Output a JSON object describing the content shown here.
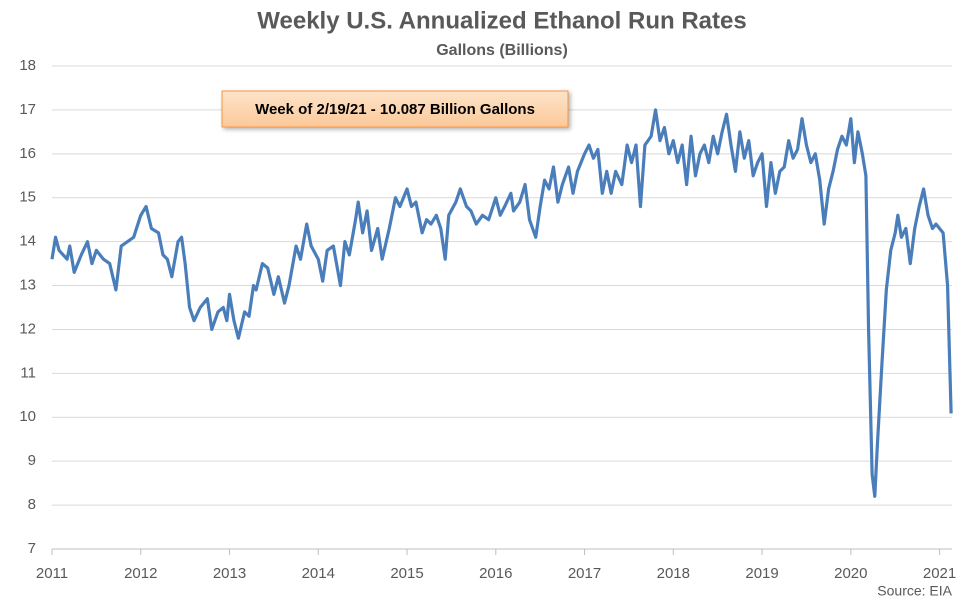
{
  "chart_data": {
    "type": "line",
    "title": "Weekly U.S. Annualized Ethanol Run Rates",
    "subtitle": "Gallons (Billions)",
    "annotation": "Week of 2/19/21 - 10.087 Billion Gallons",
    "source": "Source: EIA",
    "color": "#4a7ebb",
    "grid": true,
    "xlim": [
      2011,
      2021.14
    ],
    "xticks": [
      2011,
      2012,
      2013,
      2014,
      2015,
      2016,
      2017,
      2018,
      2019,
      2020,
      2021
    ],
    "ylim": [
      7,
      18
    ],
    "yticks": [
      7,
      8,
      9,
      10,
      11,
      12,
      13,
      14,
      15,
      16,
      17,
      18
    ],
    "x": [
      2011.0,
      2011.04,
      2011.08,
      2011.17,
      2011.2,
      2011.25,
      2011.33,
      2011.4,
      2011.45,
      2011.5,
      2011.58,
      2011.65,
      2011.72,
      2011.78,
      2011.85,
      2011.92,
      2012.0,
      2012.06,
      2012.12,
      2012.2,
      2012.25,
      2012.3,
      2012.35,
      2012.42,
      2012.46,
      2012.5,
      2012.55,
      2012.6,
      2012.67,
      2012.75,
      2012.8,
      2012.87,
      2012.93,
      2012.97,
      2013.0,
      2013.05,
      2013.1,
      2013.17,
      2013.22,
      2013.27,
      2013.3,
      2013.37,
      2013.43,
      2013.5,
      2013.55,
      2013.62,
      2013.67,
      2013.75,
      2013.8,
      2013.87,
      2013.92,
      2014.0,
      2014.05,
      2014.1,
      2014.17,
      2014.25,
      2014.3,
      2014.35,
      2014.42,
      2014.45,
      2014.5,
      2014.55,
      2014.6,
      2014.67,
      2014.72,
      2014.8,
      2014.87,
      2014.92,
      2015.0,
      2015.05,
      2015.1,
      2015.17,
      2015.22,
      2015.27,
      2015.33,
      2015.38,
      2015.43,
      2015.47,
      2015.55,
      2015.6,
      2015.67,
      2015.72,
      2015.78,
      2015.85,
      2015.92,
      2016.0,
      2016.05,
      2016.1,
      2016.17,
      2016.2,
      2016.27,
      2016.33,
      2016.38,
      2016.45,
      2016.5,
      2016.55,
      2016.6,
      2016.65,
      2016.7,
      2016.75,
      2016.82,
      2016.87,
      2016.92,
      2017.0,
      2017.05,
      2017.1,
      2017.15,
      2017.2,
      2017.25,
      2017.3,
      2017.35,
      2017.42,
      2017.48,
      2017.53,
      2017.58,
      2017.63,
      2017.68,
      2017.75,
      2017.8,
      2017.85,
      2017.9,
      2017.95,
      2018.0,
      2018.05,
      2018.1,
      2018.15,
      2018.2,
      2018.25,
      2018.3,
      2018.35,
      2018.4,
      2018.45,
      2018.5,
      2018.55,
      2018.6,
      2018.65,
      2018.7,
      2018.75,
      2018.8,
      2018.85,
      2018.9,
      2018.95,
      2019.0,
      2019.05,
      2019.1,
      2019.15,
      2019.2,
      2019.25,
      2019.3,
      2019.35,
      2019.4,
      2019.45,
      2019.5,
      2019.55,
      2019.6,
      2019.65,
      2019.7,
      2019.75,
      2019.8,
      2019.85,
      2019.9,
      2019.95,
      2020.0,
      2020.04,
      2020.08,
      2020.13,
      2020.17,
      2020.2,
      2020.24,
      2020.27,
      2020.3,
      2020.35,
      2020.4,
      2020.45,
      2020.5,
      2020.53,
      2020.57,
      2020.62,
      2020.67,
      2020.72,
      2020.77,
      2020.82,
      2020.87,
      2020.92,
      2020.96,
      2021.0,
      2021.04,
      2021.09,
      2021.13
    ],
    "values": [
      13.6,
      14.1,
      13.8,
      13.6,
      13.9,
      13.3,
      13.7,
      14.0,
      13.5,
      13.8,
      13.6,
      13.5,
      12.9,
      13.9,
      14.0,
      14.1,
      14.6,
      14.8,
      14.3,
      14.2,
      13.7,
      13.6,
      13.2,
      14.0,
      14.1,
      13.5,
      12.5,
      12.2,
      12.5,
      12.7,
      12.0,
      12.4,
      12.5,
      12.2,
      12.8,
      12.2,
      11.8,
      12.4,
      12.3,
      13.0,
      12.9,
      13.5,
      13.4,
      12.8,
      13.2,
      12.6,
      13.0,
      13.9,
      13.6,
      14.4,
      13.9,
      13.6,
      13.1,
      13.8,
      13.9,
      13.0,
      14.0,
      13.7,
      14.5,
      14.9,
      14.2,
      14.7,
      13.8,
      14.3,
      13.6,
      14.3,
      15.0,
      14.8,
      15.2,
      14.8,
      14.9,
      14.2,
      14.5,
      14.4,
      14.6,
      14.3,
      13.6,
      14.6,
      14.9,
      15.2,
      14.8,
      14.7,
      14.4,
      14.6,
      14.5,
      15.0,
      14.6,
      14.8,
      15.1,
      14.7,
      14.9,
      15.3,
      14.5,
      14.1,
      14.8,
      15.4,
      15.2,
      15.7,
      14.9,
      15.3,
      15.7,
      15.1,
      15.6,
      16.0,
      16.2,
      15.9,
      16.1,
      15.1,
      15.6,
      15.1,
      15.6,
      15.3,
      16.2,
      15.8,
      16.2,
      14.8,
      16.2,
      16.4,
      17.0,
      16.3,
      16.6,
      16.0,
      16.3,
      15.8,
      16.2,
      15.3,
      16.4,
      15.5,
      16.0,
      16.2,
      15.8,
      16.4,
      16.0,
      16.5,
      16.9,
      16.2,
      15.6,
      16.5,
      15.9,
      16.3,
      15.5,
      15.8,
      16.0,
      14.8,
      15.8,
      15.1,
      15.6,
      15.7,
      16.3,
      15.9,
      16.1,
      16.8,
      16.2,
      15.8,
      16.0,
      15.4,
      14.4,
      15.2,
      15.6,
      16.1,
      16.4,
      16.2,
      16.8,
      15.8,
      16.5,
      16.0,
      15.5,
      12.0,
      8.7,
      8.2,
      9.4,
      11.2,
      12.9,
      13.8,
      14.2,
      14.6,
      14.1,
      14.3,
      13.5,
      14.3,
      14.8,
      15.2,
      14.6,
      14.3,
      14.4,
      14.3,
      14.2,
      13.0,
      10.087
    ]
  }
}
